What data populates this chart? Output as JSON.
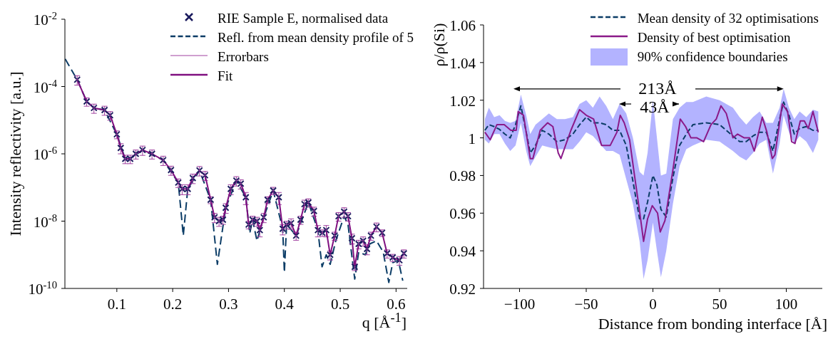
{
  "chart_data": [
    {
      "type": "scatter",
      "xlabel": "q [Å$^{-1}$]",
      "ylabel": "Intensity reflectivity [a.u.]",
      "log": "y",
      "legend": "top right",
      "xlim": [
        0.007,
        0.62
      ],
      "xticks": [
        0.1,
        0.2,
        0.3,
        0.4,
        0.5,
        0.6
      ],
      "ylim": [
        1e-10,
        0.01
      ],
      "yticks": [
        {
          "value": 1e-10,
          "label": "10$^{-10}$"
        },
        {
          "value": 1e-08,
          "label": "10$^{-8}$"
        },
        {
          "value": 1e-06,
          "label": "10$^{-6}$"
        },
        {
          "value": 0.0001,
          "label": "10$^{-4}$"
        },
        {
          "value": 0.01,
          "label": "10$^{-2}$"
        }
      ],
      "series": [
        {
          "name": "RIE Sample E, normalised data",
          "marker": "cross",
          "color": "#1b1b5e",
          "x": [
            0.029,
            0.046,
            0.059,
            0.078,
            0.088,
            0.1,
            0.107,
            0.115,
            0.124,
            0.134,
            0.146,
            0.163,
            0.183,
            0.197,
            0.21,
            0.217,
            0.227,
            0.236,
            0.248,
            0.258,
            0.268,
            0.275,
            0.283,
            0.29,
            0.295,
            0.304,
            0.314,
            0.322,
            0.331,
            0.336,
            0.343,
            0.351,
            0.356,
            0.363,
            0.37,
            0.38,
            0.39,
            0.397,
            0.404,
            0.412,
            0.421,
            0.429,
            0.436,
            0.443,
            0.453,
            0.46,
            0.468,
            0.475,
            0.482,
            0.49,
            0.497,
            0.507,
            0.514,
            0.521,
            0.526,
            0.533,
            0.541,
            0.548,
            0.555,
            0.565,
            0.575,
            0.584,
            0.594,
            0.606,
            0.614
          ],
          "values": [
            0.00016,
            3.6e-05,
            2.3e-05,
            2e-05,
            1.4e-05,
            3.8e-06,
            1.5e-06,
            7.1e-07,
            7.1e-07,
            1e-06,
            1.3e-06,
            1e-06,
            6.5e-07,
            3.3e-07,
            1.4e-07,
            9.1e-08,
            9.1e-08,
            1.9e-07,
            3.2e-07,
            2.3e-07,
            4.3e-08,
            1.3e-08,
            1e-08,
            1.1e-08,
            2.5e-08,
            9.1e-08,
            1.6e-07,
            1.3e-07,
            5.1e-08,
            7.9e-09,
            1.1e-08,
            1e-08,
            5.4e-09,
            1.3e-08,
            4.3e-08,
            8.1e-08,
            5.1e-08,
            5.9e-09,
            7.9e-09,
            8.7e-09,
            3.7e-09,
            1.1e-08,
            3.2e-08,
            3.6e-08,
            2e-08,
            5.4e-09,
            4.5e-09,
            5.4e-09,
            1e-09,
            3.7e-09,
            1.4e-08,
            1.9e-08,
            1.4e-08,
            3.1e-09,
            4.4e-10,
            2.1e-09,
            2.6e-09,
            1.5e-09,
            3.7e-09,
            6.8e-09,
            4.5e-09,
            1.1e-09,
            8.3e-10,
            6.9e-10,
            1.1e-09
          ]
        },
        {
          "name": "Refl. from mean density profile of 5",
          "type": "line",
          "line_style": "dashed",
          "color": "#0b3c66",
          "x": [
            0.0075,
            0.029,
            0.046,
            0.059,
            0.078,
            0.1,
            0.115,
            0.124,
            0.146,
            0.183,
            0.21,
            0.219,
            0.227,
            0.248,
            0.268,
            0.28,
            0.295,
            0.314,
            0.331,
            0.338,
            0.343,
            0.351,
            0.363,
            0.38,
            0.397,
            0.4,
            0.404,
            0.421,
            0.443,
            0.46,
            0.4675,
            0.475,
            0.482,
            0.492,
            0.507,
            0.514,
            0.526,
            0.533,
            0.545,
            0.553,
            0.565,
            0.577,
            0.587,
            0.594,
            0.604,
            0.612
          ],
          "values": [
            0.00066,
            0.00016,
            3.6e-05,
            2.3e-05,
            2e-05,
            3.8e-06,
            7.1e-07,
            7.1e-07,
            1.3e-06,
            6.5e-07,
            1.4e-07,
            3.7e-09,
            9.1e-08,
            3.2e-07,
            4.3e-08,
            5.2e-10,
            2.5e-08,
            1.6e-07,
            5.1e-08,
            4.3e-09,
            1.1e-08,
            2.6e-09,
            1.3e-08,
            8.1e-08,
            5.9e-09,
            3e-10,
            8.1e-09,
            3.7e-09,
            3.6e-08,
            5.4e-09,
            4.4e-10,
            1e-09,
            5.2e-10,
            2.6e-09,
            1.4e-08,
            7.9e-09,
            1.9e-10,
            1.2e-09,
            1e-09,
            2.1e-09,
            2.6e-09,
            1.2e-09,
            1.5e-10,
            5.8e-10,
            6.9e-10,
            1.7e-10
          ]
        },
        {
          "name": "Errorbars",
          "color": "#a040a0",
          "x": [
            0.029,
            0.046,
            0.059,
            0.078,
            0.088,
            0.1,
            0.107,
            0.115,
            0.124,
            0.134,
            0.146,
            0.163,
            0.183,
            0.197,
            0.21,
            0.217,
            0.227,
            0.236,
            0.248,
            0.258,
            0.268,
            0.275,
            0.283,
            0.29,
            0.295,
            0.304,
            0.314,
            0.322,
            0.331,
            0.336,
            0.343,
            0.351,
            0.356,
            0.363,
            0.37,
            0.38,
            0.39,
            0.397,
            0.404,
            0.412,
            0.421,
            0.429,
            0.436,
            0.443,
            0.453,
            0.46,
            0.468,
            0.475,
            0.482,
            0.49,
            0.497,
            0.507,
            0.514,
            0.521,
            0.526,
            0.533,
            0.541,
            0.548,
            0.555,
            0.565,
            0.575,
            0.584,
            0.594,
            0.606,
            0.614
          ],
          "values": [
            0.00016,
            3.6e-05,
            2.3e-05,
            2e-05,
            1.4e-05,
            3.8e-06,
            1.5e-06,
            7.1e-07,
            7.1e-07,
            1e-06,
            1.3e-06,
            1e-06,
            6.5e-07,
            3.3e-07,
            1.4e-07,
            9.1e-08,
            9.1e-08,
            1.9e-07,
            3.2e-07,
            2.3e-07,
            4.3e-08,
            1.3e-08,
            1e-08,
            1.1e-08,
            2.5e-08,
            9.1e-08,
            1.6e-07,
            1.3e-07,
            5.1e-08,
            7.9e-09,
            1.1e-08,
            1e-08,
            5.4e-09,
            1.3e-08,
            4.3e-08,
            8.1e-08,
            5.1e-08,
            5.9e-09,
            7.9e-09,
            8.7e-09,
            3.7e-09,
            1.1e-08,
            3.2e-08,
            3.6e-08,
            2e-08,
            5.4e-09,
            4.5e-09,
            5.4e-09,
            1e-09,
            3.7e-09,
            1.4e-08,
            1.9e-08,
            1.4e-08,
            3.1e-09,
            4.4e-10,
            2.1e-09,
            2.6e-09,
            1.5e-09,
            3.7e-09,
            6.8e-09,
            4.5e-09,
            1.1e-09,
            8.3e-10,
            6.9e-10,
            1.1e-09
          ],
          "errors": [
            5e-05,
            1e-05,
            7e-06,
            6e-06,
            4e-06,
            1e-06,
            5e-07,
            2e-07,
            2e-07,
            3e-07,
            4e-07,
            3e-07,
            2e-07,
            1e-07,
            4e-08,
            3e-08,
            3e-08,
            6e-08,
            1e-07,
            7e-08,
            1e-08,
            4e-09,
            3e-09,
            3e-09,
            8e-09,
            3e-08,
            5e-08,
            4e-08,
            2e-08,
            2e-09,
            3e-09,
            3e-09,
            2e-09,
            4e-09,
            1e-08,
            2e-08,
            2e-08,
            2e-09,
            2e-09,
            3e-09,
            1e-09,
            3e-09,
            1e-08,
            1e-08,
            6e-09,
            2e-09,
            1e-09,
            2e-09,
            3e-10,
            1e-09,
            4e-09,
            6e-09,
            4e-09,
            1e-09,
            1e-10,
            6e-10,
            8e-10,
            5e-10,
            1e-09,
            2e-09,
            1e-09,
            3e-10,
            2e-10,
            2e-10,
            3e-10
          ]
        },
        {
          "name": "Fit",
          "type": "line",
          "line_style": "solid",
          "color": "#7f0f7f",
          "x": [
            0.029,
            0.046,
            0.059,
            0.078,
            0.088,
            0.1,
            0.107,
            0.115,
            0.124,
            0.134,
            0.146,
            0.163,
            0.183,
            0.197,
            0.21,
            0.217,
            0.227,
            0.236,
            0.248,
            0.258,
            0.268,
            0.275,
            0.283,
            0.29,
            0.295,
            0.304,
            0.314,
            0.322,
            0.331,
            0.336,
            0.343,
            0.351,
            0.356,
            0.363,
            0.37,
            0.38,
            0.39,
            0.397,
            0.404,
            0.412,
            0.421,
            0.429,
            0.436,
            0.443,
            0.453,
            0.46,
            0.468,
            0.475,
            0.482,
            0.49,
            0.497,
            0.507,
            0.514,
            0.521,
            0.526,
            0.533,
            0.541,
            0.548,
            0.555,
            0.565,
            0.575,
            0.584,
            0.594,
            0.606,
            0.614
          ],
          "values": [
            0.00016,
            3.6e-05,
            2.3e-05,
            2e-05,
            1.4e-05,
            3.8e-06,
            1.5e-06,
            7.1e-07,
            7.1e-07,
            1e-06,
            1.3e-06,
            1e-06,
            6.5e-07,
            3.3e-07,
            1.4e-07,
            9.1e-08,
            9.1e-08,
            1.9e-07,
            3.2e-07,
            2.3e-07,
            4.3e-08,
            1.3e-08,
            1e-08,
            1.1e-08,
            2.5e-08,
            9.1e-08,
            1.6e-07,
            1.3e-07,
            5.1e-08,
            7.9e-09,
            1.1e-08,
            1e-08,
            5.4e-09,
            1.3e-08,
            4.3e-08,
            8.1e-08,
            5.1e-08,
            5.9e-09,
            7.9e-09,
            8.7e-09,
            3.7e-09,
            1.1e-08,
            3.2e-08,
            3.6e-08,
            2e-08,
            5.4e-09,
            4.5e-09,
            5.4e-09,
            1e-09,
            3.7e-09,
            1.4e-08,
            1.9e-08,
            1.4e-08,
            3.1e-09,
            4.4e-10,
            2.1e-09,
            2.6e-09,
            1.5e-09,
            3.7e-09,
            6.8e-09,
            4.5e-09,
            1.1e-09,
            8.3e-10,
            6.9e-10,
            1.1e-09
          ]
        }
      ]
    },
    {
      "type": "line",
      "xlabel": "Distance from bonding interface [Å]",
      "ylabel": "ρ/ρ(Si)",
      "legend": "top right",
      "xlim": [
        -127,
        127
      ],
      "xticks": [
        {
          "value": -100,
          "label": "−100"
        },
        {
          "value": -50,
          "label": "−50"
        },
        0,
        50,
        100
      ],
      "ylim": [
        0.92,
        1.06
      ],
      "yticks": [
        0.92,
        0.94,
        0.96,
        0.98,
        1,
        1.02,
        1.04,
        1.06
      ],
      "annotations": [
        {
          "text": "213Å",
          "x": 98,
          "y": 1.026
        },
        "43Å",
        "90% confidence boundaries"
      ],
      "series": [
        {
          "name": "Mean density of 32 optimisations",
          "line_style": "dashed",
          "color": "#0b3c66",
          "x": [
            -126,
            -123,
            -119,
            -115,
            -111,
            -107,
            -103,
            -99,
            -95,
            -92,
            -88,
            -83,
            -78,
            -72,
            -66,
            -60,
            -55,
            -50,
            -45,
            -40,
            -35,
            -30,
            -25,
            -20,
            -15,
            -10,
            -7,
            -4,
            0,
            3,
            6,
            10,
            15,
            20,
            25,
            30,
            40,
            50,
            60,
            65,
            70,
            75,
            80,
            85,
            90,
            95,
            98,
            102,
            106,
            110,
            115,
            120,
            124
          ],
          "values": [
            1.004,
            1.007,
            1.006,
            1.0045,
            1.002,
            1.0,
            1.007,
            1.017,
            1.003,
            0.992,
            0.996,
            1.004,
            1.002,
            0.998,
            0.999,
            1.002,
            1.007,
            1.011,
            1.008,
            1.008,
            1.007,
            1.004,
            1.004,
            0.996,
            0.977,
            0.957,
            0.957,
            0.966,
            0.98,
            0.975,
            0.962,
            0.958,
            0.979,
            0.996,
            1.002,
            1.007,
            1.008,
            1.007,
            1.001,
            0.998,
            0.998,
            1.001,
            1.003,
            1.003,
            0.993,
            1.01,
            1.019,
            1.012,
            1.002,
            1.005,
            1.006,
            1.004,
            1.004
          ],
          "lower": [
            0.999,
            0.997,
            1.002,
            1.002,
            0.997,
            0.993,
            0.996,
            1.008,
            0.993,
            0.985,
            0.99,
            0.996,
            0.995,
            0.994,
            0.994,
            0.994,
            0.998,
            1.003,
            1.001,
            0.997,
            0.993,
            0.993,
            0.991,
            0.978,
            0.965,
            0.945,
            0.925,
            0.935,
            0.955,
            0.94,
            0.926,
            0.94,
            0.965,
            0.985,
            0.994,
            0.996,
            0.999,
            0.998,
            0.993,
            0.99,
            0.988,
            0.992,
            0.997,
            0.999,
            0.981,
            0.997,
            1.012,
            1.003,
            0.997,
            1.001,
            0.998,
            0.992,
            0.999
          ],
          "upper": [
            1.01,
            1.016,
            1.011,
            1.012,
            1.009,
            1.008,
            1.009,
            1.023,
            1.012,
            1.002,
            1.007,
            1.01,
            1.013,
            1.01,
            1.01,
            1.011,
            1.018,
            1.02,
            1.016,
            1.022,
            1.017,
            1.01,
            1.018,
            1.013,
            1.0,
            0.982,
            0.98,
            0.992,
            1.02,
            1.0,
            0.98,
            0.981,
            1.01,
            1.016,
            1.019,
            1.019,
            1.022,
            1.02,
            1.016,
            1.011,
            1.007,
            1.011,
            1.014,
            1.008,
            1.008,
            1.016,
            1.026,
            1.016,
            1.01,
            1.014,
            1.011,
            1.015,
            1.014
          ]
        },
        {
          "name": "Density of best optimisation",
          "line_style": "solid",
          "color": "#8b1a89",
          "x": [
            -126,
            -122,
            -117,
            -111.5,
            -106.5,
            -102.5,
            -101,
            -97,
            -92,
            -90,
            -84.5,
            -79,
            -75,
            -71,
            -69,
            -61.5,
            -55,
            -50,
            -44.5,
            -38.5,
            -32,
            -27,
            -24.5,
            -21.5,
            -17.5,
            -14,
            -10,
            -7,
            -4,
            -0.5,
            3.5,
            5.5,
            9,
            15,
            20.5,
            24.5,
            28.5,
            33,
            38,
            43.5,
            47.5,
            51,
            55,
            60,
            63.5,
            68.5,
            72.5,
            76,
            82,
            85.5,
            89.5,
            91.5,
            97,
            101,
            104,
            106.5,
            110.5,
            113.5,
            116.5,
            120,
            124
          ],
          "values": [
            1.003,
            0.999,
            1.007,
            1.007,
            1.004,
            1.004,
            1.014,
            1.012,
            0.989,
            0.989,
            1.004,
            1.008,
            1.006,
            0.992,
            0.989,
            1.004,
            1.015,
            1.012,
            1.01,
            0.996,
            0.996,
            1.003,
            1.012,
            1.008,
            0.999,
            0.981,
            0.961,
            0.945,
            0.957,
            0.964,
            0.96,
            0.95,
            0.956,
            0.983,
            1.01,
            1.006,
            1.0,
            1.0,
            0.998,
            1.007,
            1.01,
            1.017,
            1.013,
            1.0,
            1.002,
            1.0,
            1.0,
            0.993,
            1.011,
            1.003,
            0.989,
            0.991,
            1.018,
            1.014,
            0.998,
            0.997,
            1.009,
            1.009,
            1.005,
            1.014,
            1.003
          ]
        }
      ]
    }
  ]
}
